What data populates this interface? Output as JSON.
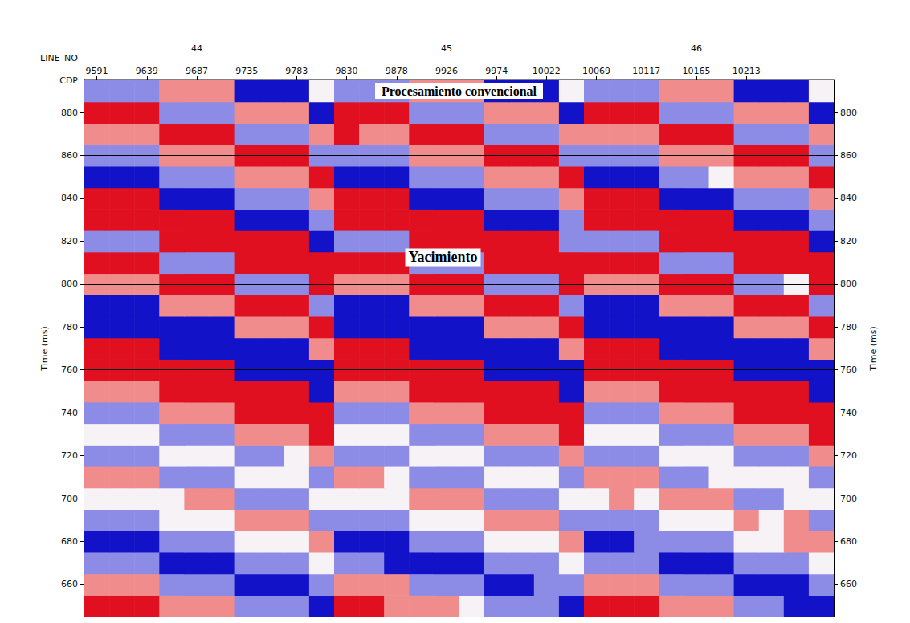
{
  "chart_data": {
    "type": "heatmap",
    "title": "Procesamiento convencional",
    "annotations": [
      "Yacimiento"
    ],
    "xlabel": "CDP",
    "categories": [
      "9591",
      null,
      "9639",
      null,
      "9687",
      null,
      "9735",
      null,
      "9783",
      null,
      "9830",
      null,
      "9878",
      null,
      "9926",
      null,
      "9974",
      null,
      "10022",
      null,
      "10069",
      null,
      "10117",
      null,
      "10165",
      null,
      "10213",
      null,
      null,
      null
    ],
    "x2label": "LINE_NO",
    "line_numbers": [
      null,
      null,
      null,
      null,
      "44",
      null,
      null,
      null,
      null,
      null,
      null,
      null,
      null,
      null,
      "45",
      null,
      null,
      null,
      null,
      null,
      null,
      null,
      null,
      null,
      "46",
      null,
      null,
      null,
      null,
      null
    ],
    "ylabel": "Time (ms)",
    "y": [
      650,
      660,
      670,
      680,
      690,
      700,
      710,
      720,
      730,
      740,
      750,
      760,
      770,
      780,
      790,
      800,
      810,
      820,
      830,
      840,
      850,
      860,
      870,
      880,
      890
    ],
    "ylim": [
      645,
      895
    ],
    "yticks": [
      660,
      680,
      700,
      720,
      740,
      760,
      780,
      800,
      820,
      840,
      860,
      880
    ],
    "y2label": "Time (ms)",
    "y2lim": [
      645,
      895
    ],
    "y2ticks": [
      660,
      680,
      700,
      720,
      740,
      760,
      780,
      800,
      820,
      840,
      860,
      880
    ],
    "zlim": [
      -2,
      2
    ],
    "reference_lines": [
      700,
      740,
      760,
      800,
      860
    ],
    "cells": [
      [
        2,
        2,
        2,
        1,
        1,
        1,
        -1,
        -1,
        -1,
        -2,
        2,
        2,
        1,
        1,
        1,
        0,
        -1,
        -1,
        -1,
        -2,
        2,
        2,
        2,
        1,
        1,
        1,
        -1,
        -1,
        -2,
        -2
      ],
      [
        1,
        1,
        1,
        -1,
        -1,
        -1,
        -2,
        -2,
        -2,
        -1,
        1,
        1,
        1,
        -1,
        -1,
        -1,
        -2,
        -2,
        -1,
        -1,
        1,
        1,
        1,
        -1,
        -1,
        -1,
        -2,
        -2,
        -2,
        -1
      ],
      [
        -1,
        -1,
        -1,
        -2,
        -2,
        -2,
        -1,
        -1,
        -1,
        0,
        -1,
        -1,
        -2,
        -2,
        -2,
        -2,
        -1,
        -1,
        -1,
        0,
        -1,
        -1,
        -1,
        -2,
        -2,
        -2,
        -1,
        -1,
        -1,
        0
      ],
      [
        -2,
        -2,
        -2,
        -1,
        -1,
        -1,
        0,
        0,
        0,
        1,
        -2,
        -2,
        -2,
        -1,
        -1,
        -1,
        0,
        0,
        0,
        1,
        -2,
        -2,
        -1,
        -1,
        -1,
        -1,
        0,
        0,
        1,
        1
      ],
      [
        -1,
        -1,
        -1,
        0,
        0,
        0,
        1,
        1,
        1,
        -1,
        -1,
        -1,
        -1,
        0,
        0,
        0,
        1,
        1,
        1,
        -1,
        -1,
        -1,
        -1,
        0,
        0,
        0,
        1,
        0,
        1,
        -1
      ],
      [
        0,
        0,
        0,
        0,
        1,
        1,
        -1,
        -1,
        -1,
        0,
        0,
        0,
        0,
        1,
        1,
        1,
        -1,
        -1,
        -1,
        0,
        0,
        1,
        0,
        1,
        1,
        1,
        -1,
        -1,
        0,
        0
      ],
      [
        1,
        1,
        1,
        -1,
        -1,
        -1,
        0,
        0,
        0,
        -1,
        1,
        1,
        0,
        -1,
        -1,
        -1,
        0,
        0,
        0,
        -1,
        1,
        1,
        1,
        -1,
        -1,
        0,
        0,
        0,
        0,
        -1
      ],
      [
        -1,
        -1,
        -1,
        0,
        0,
        0,
        -1,
        -1,
        0,
        1,
        -1,
        -1,
        -1,
        0,
        0,
        0,
        -1,
        -1,
        -1,
        1,
        -1,
        -1,
        -1,
        0,
        0,
        0,
        -1,
        -1,
        -1,
        1
      ],
      [
        0,
        0,
        0,
        -1,
        -1,
        -1,
        1,
        1,
        1,
        2,
        0,
        0,
        0,
        -1,
        -1,
        -1,
        1,
        1,
        1,
        2,
        0,
        0,
        0,
        -1,
        -1,
        -1,
        1,
        1,
        1,
        2
      ],
      [
        -1,
        -1,
        -1,
        1,
        1,
        1,
        2,
        2,
        2,
        2,
        -1,
        -1,
        -1,
        1,
        1,
        1,
        2,
        2,
        2,
        2,
        -1,
        -1,
        -1,
        1,
        1,
        1,
        2,
        2,
        2,
        2
      ],
      [
        1,
        1,
        1,
        2,
        2,
        2,
        2,
        2,
        2,
        -2,
        1,
        1,
        1,
        2,
        2,
        2,
        2,
        2,
        2,
        -2,
        1,
        1,
        1,
        2,
        2,
        2,
        2,
        2,
        2,
        -2
      ],
      [
        2,
        2,
        2,
        2,
        2,
        2,
        -2,
        -2,
        -2,
        -2,
        2,
        2,
        2,
        2,
        2,
        2,
        -2,
        -2,
        -2,
        -2,
        2,
        2,
        2,
        2,
        2,
        2,
        -2,
        -2,
        -2,
        -2
      ],
      [
        2,
        2,
        2,
        -2,
        -2,
        -2,
        -2,
        -2,
        -2,
        1,
        2,
        2,
        2,
        -2,
        -2,
        -2,
        -2,
        -2,
        -2,
        1,
        2,
        2,
        2,
        -2,
        -2,
        -2,
        -2,
        -2,
        -2,
        1
      ],
      [
        -2,
        -2,
        -2,
        -2,
        -2,
        -2,
        1,
        1,
        1,
        2,
        -2,
        -2,
        -2,
        -2,
        -2,
        -2,
        1,
        1,
        1,
        2,
        -2,
        -2,
        -2,
        -2,
        -2,
        -2,
        1,
        1,
        1,
        2
      ],
      [
        -2,
        -2,
        -2,
        1,
        1,
        1,
        2,
        2,
        2,
        -1,
        -2,
        -2,
        -2,
        1,
        1,
        1,
        2,
        2,
        2,
        -1,
        -2,
        -2,
        -2,
        1,
        1,
        1,
        2,
        2,
        2,
        -1
      ],
      [
        1,
        1,
        1,
        2,
        2,
        2,
        -1,
        -1,
        -1,
        2,
        1,
        1,
        1,
        2,
        2,
        2,
        -1,
        -1,
        -1,
        2,
        1,
        1,
        1,
        2,
        2,
        2,
        -1,
        -1,
        0,
        2
      ],
      [
        2,
        2,
        2,
        -1,
        -1,
        -1,
        2,
        2,
        2,
        2,
        2,
        2,
        2,
        -1,
        -1,
        -1,
        2,
        2,
        2,
        2,
        2,
        2,
        2,
        -1,
        -1,
        -1,
        2,
        2,
        2,
        2
      ],
      [
        -1,
        -1,
        -1,
        2,
        2,
        2,
        2,
        2,
        2,
        -2,
        -1,
        -1,
        -1,
        2,
        2,
        2,
        2,
        2,
        2,
        -1,
        -1,
        -1,
        -1,
        2,
        2,
        2,
        2,
        2,
        2,
        -2
      ],
      [
        2,
        2,
        2,
        2,
        2,
        2,
        -2,
        -2,
        -2,
        -1,
        2,
        2,
        2,
        2,
        2,
        2,
        -2,
        -2,
        -2,
        -1,
        2,
        2,
        2,
        2,
        2,
        2,
        -2,
        -2,
        -2,
        -1
      ],
      [
        2,
        2,
        2,
        -2,
        -2,
        -2,
        -1,
        -1,
        -1,
        1,
        2,
        2,
        2,
        -2,
        -2,
        -2,
        -1,
        -1,
        -1,
        1,
        2,
        2,
        2,
        -2,
        -2,
        -2,
        -1,
        -1,
        -1,
        1
      ],
      [
        -2,
        -2,
        -2,
        -1,
        -1,
        -1,
        1,
        1,
        1,
        2,
        -2,
        -2,
        -2,
        -1,
        -1,
        -1,
        1,
        1,
        1,
        2,
        -2,
        -2,
        -2,
        -1,
        -1,
        0,
        1,
        1,
        1,
        2
      ],
      [
        -1,
        -1,
        -1,
        1,
        1,
        1,
        2,
        2,
        2,
        -1,
        -1,
        -1,
        -1,
        1,
        1,
        1,
        2,
        2,
        2,
        -1,
        -1,
        -1,
        -1,
        1,
        1,
        1,
        2,
        2,
        2,
        -1
      ],
      [
        1,
        1,
        1,
        2,
        2,
        2,
        -1,
        -1,
        -1,
        1,
        2,
        1,
        1,
        2,
        2,
        2,
        -1,
        -1,
        -1,
        1,
        1,
        1,
        1,
        2,
        2,
        2,
        -1,
        -1,
        -1,
        1
      ],
      [
        2,
        2,
        2,
        -1,
        -1,
        -1,
        1,
        1,
        1,
        -2,
        2,
        2,
        2,
        -1,
        -1,
        -1,
        1,
        1,
        1,
        -2,
        2,
        2,
        2,
        -1,
        -1,
        -1,
        1,
        1,
        1,
        -2
      ],
      [
        -1,
        -1,
        -1,
        1,
        1,
        1,
        -2,
        -2,
        -2,
        0,
        -1,
        -1,
        -1,
        1,
        1,
        1,
        -2,
        -2,
        -2,
        0,
        -1,
        -1,
        -1,
        1,
        1,
        1,
        -2,
        -2,
        -2,
        0
      ]
    ]
  }
}
